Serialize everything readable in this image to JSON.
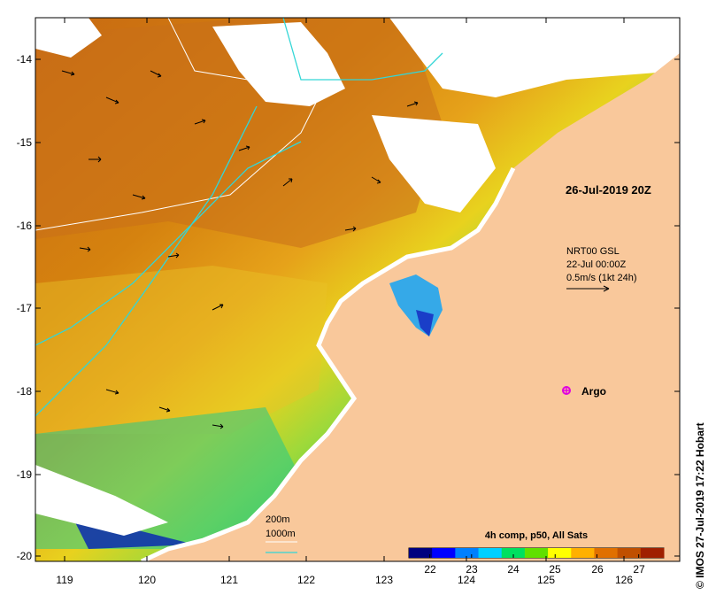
{
  "map": {
    "title_date": "26-Jul-2019 20Z",
    "product": "4h comp, p50, All Sats",
    "credit": "© IMOS 27-Jul-2019 17:22 Hobart",
    "currents": {
      "line1": "NRT00 GSL",
      "line2": "22-Jul 00:00Z",
      "line3": "0.5m/s (1kt 24h)"
    },
    "argo_label": "Argo",
    "isobath_legend": {
      "shallow": "200m",
      "deep": "1000m"
    },
    "x_axis_labels": [
      "119",
      "120",
      "121",
      "122",
      "123",
      "124",
      "125",
      "126"
    ],
    "y_axis_labels": [
      "-14",
      "-15",
      "-16",
      "-17",
      "-18",
      "-19",
      "-20"
    ],
    "colorbar": {
      "ticks": [
        "22",
        "23",
        "24",
        "25",
        "26",
        "27"
      ],
      "range": [
        21.5,
        27.6
      ],
      "colors": [
        "#00007f",
        "#0000ff",
        "#0080ff",
        "#00d0ff",
        "#00e060",
        "#60e000",
        "#ffff00",
        "#ffb000",
        "#e07000",
        "#c05000",
        "#a02000"
      ]
    },
    "colors": {
      "land": "#f9c89b",
      "cloud": "#ffffff",
      "contour_200": "#ffffff",
      "contour_1000": "#33d6d6",
      "argo": "#e000e0"
    }
  }
}
